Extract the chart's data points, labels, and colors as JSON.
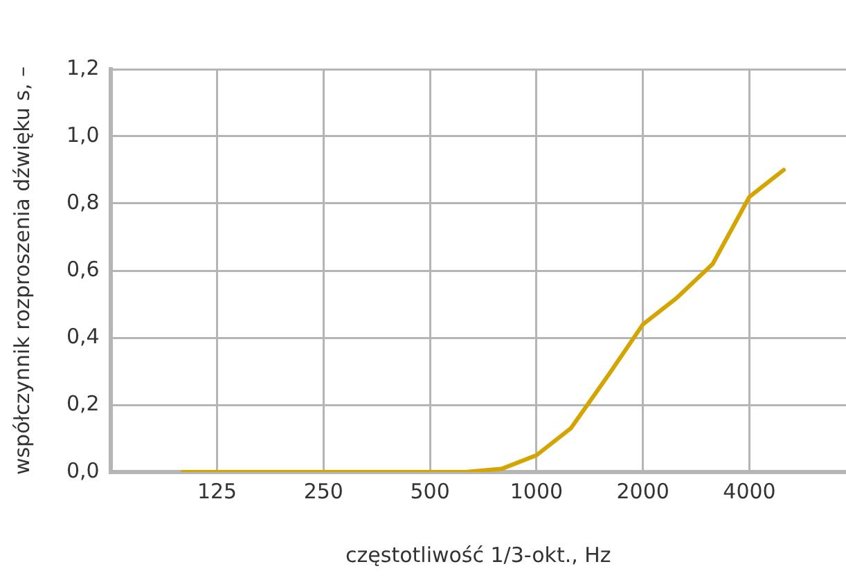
{
  "chart_data": {
    "type": "line",
    "xlabel": "częstotliwość 1/3-okt., Hz",
    "ylabel": "współczynnik rozproszenia dźwięku s, –",
    "x": [
      100,
      125,
      160,
      200,
      250,
      315,
      400,
      500,
      630,
      800,
      1000,
      1250,
      1600,
      2000,
      2500,
      3150,
      4000,
      5000
    ],
    "series": [
      {
        "color": "#d4a500",
        "values": [
          0,
          0,
          0,
          0,
          0,
          0,
          0,
          0,
          0,
          0.01,
          0.05,
          0.13,
          0.29,
          0.44,
          0.52,
          0.62,
          0.82,
          0.9
        ]
      }
    ],
    "log": "x",
    "xlim": [
      62.5,
      7500
    ],
    "xticks": [
      125,
      250,
      500,
      1000,
      2000,
      4000
    ],
    "ylim": [
      0,
      1.2
    ],
    "yticks": [
      {
        "value": 0,
        "label": "0,0"
      },
      {
        "value": 0.2,
        "label": "0,2"
      },
      {
        "value": 0.4,
        "label": "0,4"
      },
      {
        "value": 0.6,
        "label": "0,6"
      },
      {
        "value": 0.8,
        "label": "0,8"
      },
      {
        "value": 1,
        "label": "1,0"
      },
      {
        "value": 1.2,
        "label": "1,2"
      }
    ],
    "grid": true,
    "legend": false,
    "marker": "none",
    "line_style": "solid"
  }
}
